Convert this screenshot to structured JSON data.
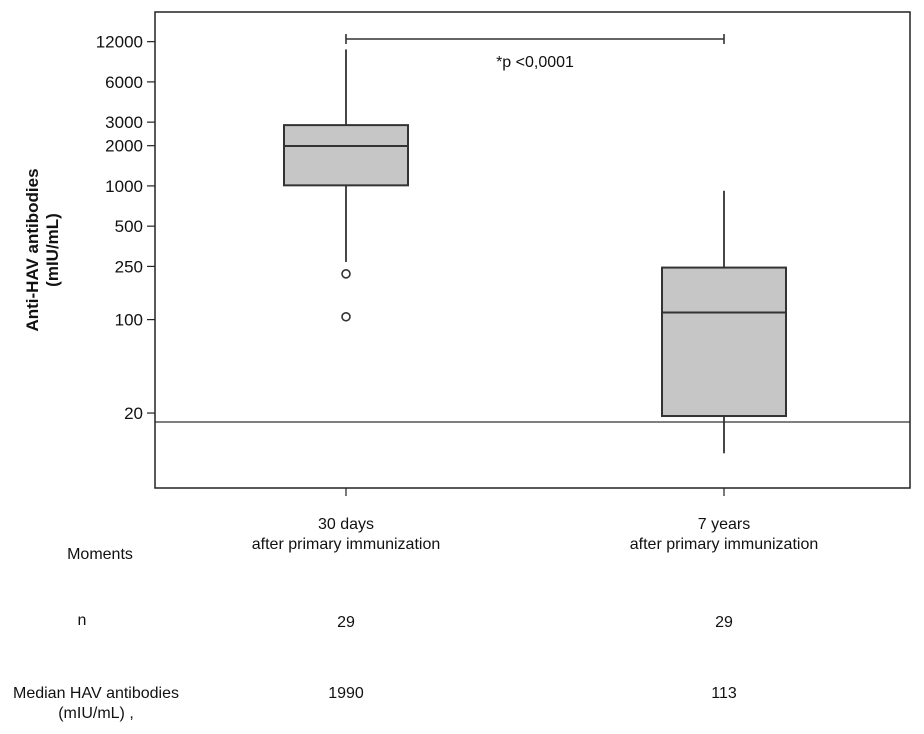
{
  "chart_data": {
    "type": "box",
    "ylabel": "Anti-HAV antibodies",
    "ylabel_unit": "(mIU/mL)",
    "yscale": "log",
    "yticks": [
      20,
      100,
      250,
      500,
      1000,
      2000,
      3000,
      6000,
      12000
    ],
    "ytick_labels": [
      "20",
      "100",
      "250",
      "500",
      "1000",
      "2000",
      "3000",
      "6000",
      "12000"
    ],
    "ylim": [
      5.5,
      20000
    ],
    "reference_line": 20,
    "categories": [
      {
        "line1": "30 days",
        "line2": "after primary immunization"
      },
      {
        "line1": "7 years",
        "line2": "after primary immunization"
      }
    ],
    "boxes": [
      {
        "whisker_low": 270,
        "q1": 1010,
        "median": 1990,
        "q3": 2850,
        "whisker_high": 10500,
        "outliers": [
          220,
          105
        ]
      },
      {
        "whisker_low": 10,
        "q1": 19,
        "median": 113,
        "q3": 245,
        "whisker_high": 920,
        "outliers": []
      }
    ],
    "significance": {
      "from": 0,
      "to": 1,
      "label": "*p <0,0001"
    }
  },
  "table": {
    "moments_label": "Moments",
    "n_label": "n",
    "n_values": [
      "29",
      "29"
    ],
    "median_label_line1": "Median HAV antibodies",
    "median_label_line2": "(mIU/mL) ,",
    "median_values": [
      "1990",
      "113"
    ]
  }
}
